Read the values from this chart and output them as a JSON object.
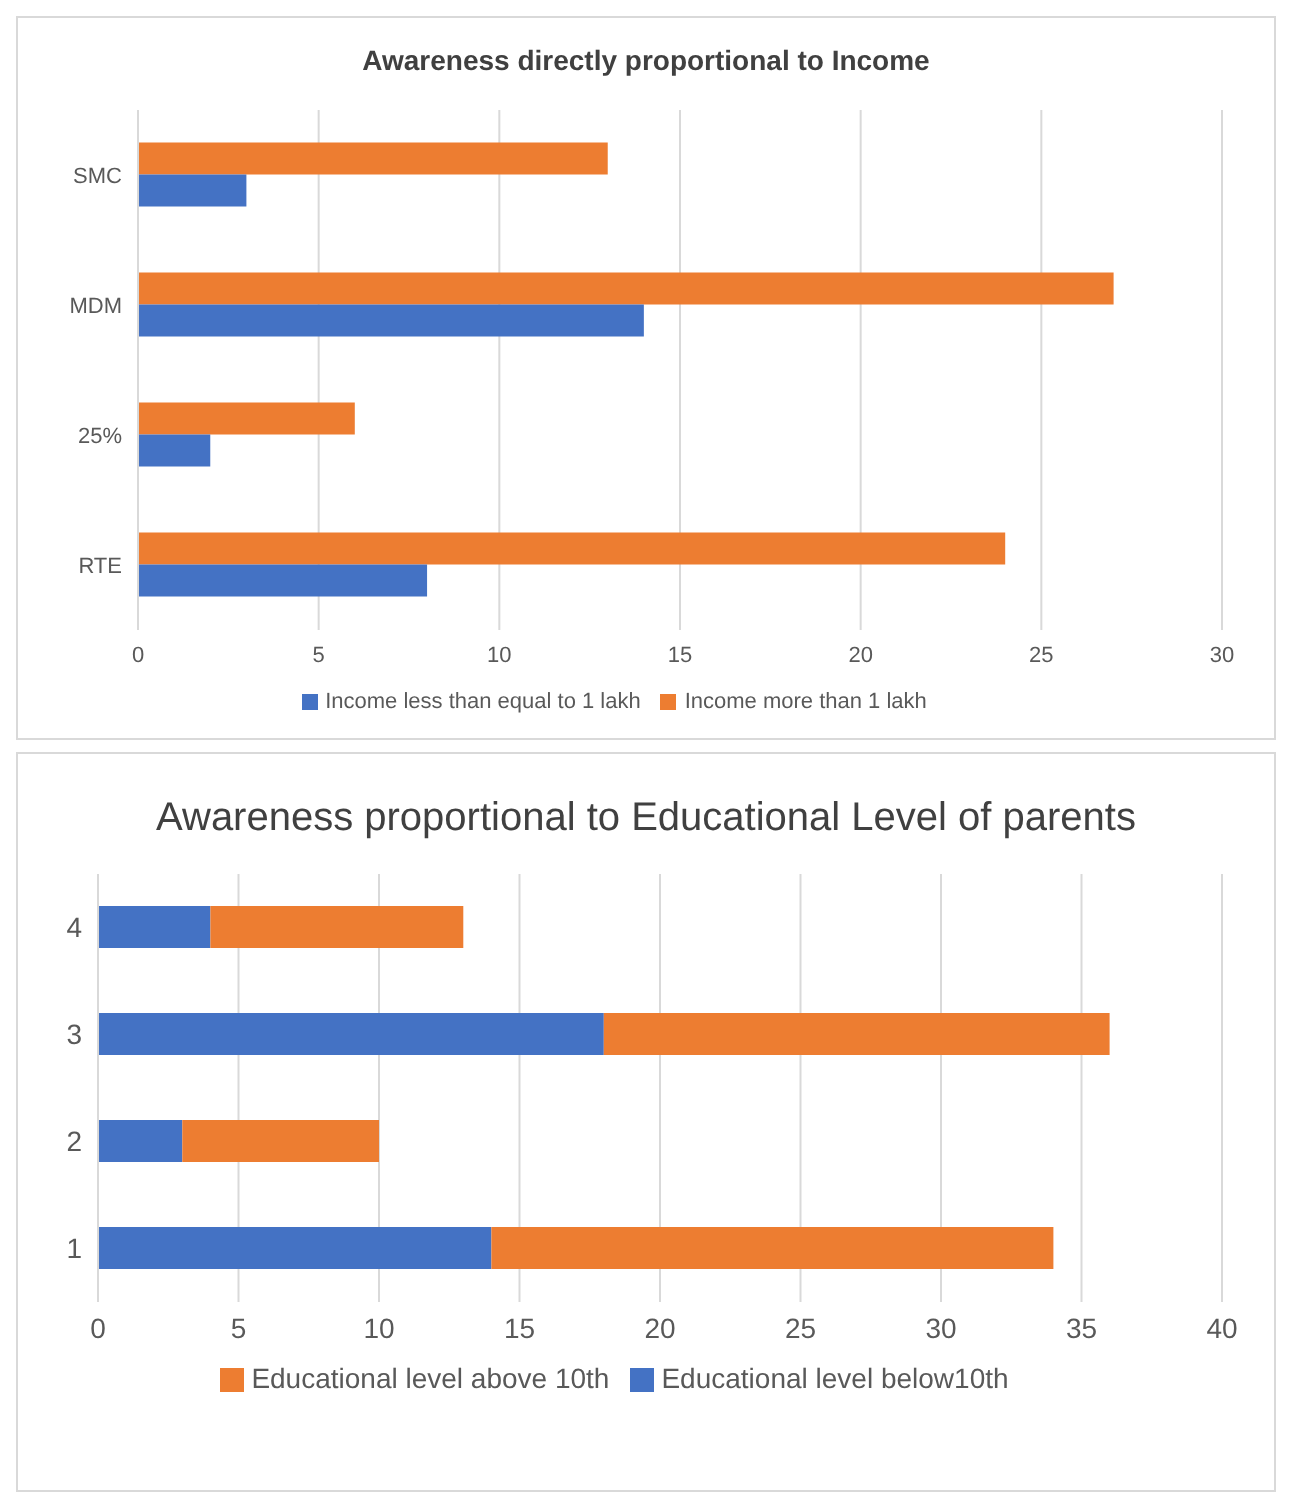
{
  "chart_data": [
    {
      "type": "bar",
      "orientation": "horizontal",
      "title": "Awareness directly proportional to Income",
      "categories": [
        "SMC",
        "MDM",
        "25%",
        "RTE"
      ],
      "series": [
        {
          "name": "Income more than 1 lakh",
          "color": "#ed7d31",
          "values": [
            13,
            27,
            6,
            24
          ]
        },
        {
          "name": "Income less than equal to 1 lakh",
          "color": "#4472c4",
          "values": [
            3,
            14,
            2,
            8
          ]
        }
      ],
      "xlim": [
        0,
        30
      ],
      "xticks": [
        0,
        5,
        10,
        15,
        20,
        25,
        30
      ],
      "grid": "x",
      "legend": "bottom"
    },
    {
      "type": "bar",
      "orientation": "horizontal",
      "stacked": true,
      "title": "Awareness proportional to Educational Level of parents",
      "categories": [
        "4",
        "3",
        "2",
        "1"
      ],
      "series": [
        {
          "name": "Educational level below10th",
          "color": "#4472c4",
          "values": [
            4,
            18,
            3,
            14
          ]
        },
        {
          "name": "Educational level above 10th",
          "color": "#ed7d31",
          "values": [
            9,
            18,
            7,
            20
          ]
        }
      ],
      "xlim": [
        0,
        40
      ],
      "xticks": [
        0,
        5,
        10,
        15,
        20,
        25,
        30,
        35,
        40
      ],
      "grid": "x",
      "legend": "bottom"
    }
  ]
}
